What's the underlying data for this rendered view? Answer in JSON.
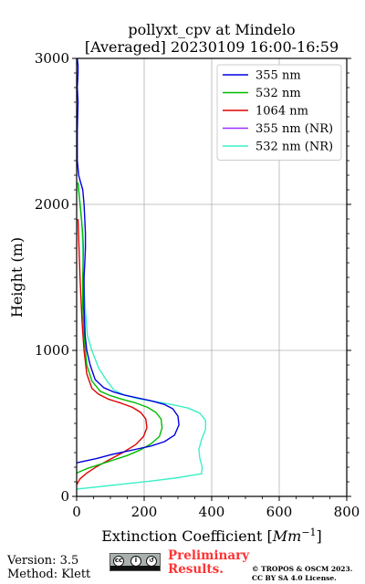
{
  "chart_data": {
    "type": "line",
    "title": "pollyxt_cpv at Mindelo",
    "subtitle": "[Averaged] 20230109 16:00-16:59",
    "xlabel": "Extinction Coefficient [Mm⁻¹]",
    "xlabel_main": "Extinction Coefficient [",
    "xlabel_unit": "Mm",
    "xlabel_exp": "−1",
    "xlabel_close": "]",
    "ylabel": "Height (m)",
    "xlim": [
      0,
      800
    ],
    "ylim": [
      0,
      3000
    ],
    "xticks": [
      "0",
      "200",
      "400",
      "600",
      "800"
    ],
    "yticks": [
      "0",
      "1000",
      "2000",
      "3000"
    ],
    "grid": true,
    "legend_position": "top-right",
    "series": [
      {
        "name": "355 nm",
        "color": "#0000dd",
        "x": [
          0,
          60,
          100,
          140,
          180,
          220,
          260,
          290,
          303,
          300,
          285,
          260,
          220,
          180,
          140,
          110,
          80,
          55,
          40,
          30,
          25,
          22,
          22,
          24,
          26,
          26,
          24,
          22,
          18,
          12,
          6,
          2,
          2,
          4,
          2,
          4,
          4,
          2
        ],
        "y": [
          230,
          260,
          285,
          305,
          325,
          345,
          375,
          420,
          490,
          550,
          600,
          630,
          655,
          675,
          695,
          715,
          745,
          800,
          900,
          1000,
          1100,
          1300,
          1500,
          1600,
          1700,
          1800,
          1900,
          2000,
          2100,
          2150,
          2200,
          2300,
          2500,
          2700,
          2800,
          2900,
          2950,
          3000
        ]
      },
      {
        "name": "532 nm",
        "color": "#00bb00",
        "x": [
          0,
          30,
          70,
          110,
          150,
          190,
          220,
          245,
          253,
          250,
          235,
          210,
          175,
          135,
          100,
          70,
          45,
          30,
          22,
          18,
          18,
          20,
          18,
          14,
          8,
          4
        ],
        "y": [
          160,
          190,
          220,
          250,
          280,
          320,
          360,
          410,
          470,
          530,
          575,
          610,
          640,
          665,
          690,
          720,
          790,
          900,
          1100,
          1300,
          1500,
          1700,
          1800,
          1900,
          2050,
          2150
        ]
      },
      {
        "name": "1064 nm",
        "color": "#dd0000",
        "x": [
          0,
          10,
          30,
          60,
          100,
          140,
          175,
          198,
          208,
          205,
          190,
          165,
          130,
          95,
          65,
          45,
          30,
          22,
          16,
          10,
          4
        ],
        "y": [
          80,
          120,
          160,
          205,
          255,
          305,
          355,
          410,
          470,
          530,
          575,
          610,
          640,
          665,
          700,
          740,
          840,
          1000,
          1200,
          1500,
          1900
        ]
      },
      {
        "name": "355 nm (NR)",
        "color": "#9b30ff",
        "x": [],
        "y": []
      },
      {
        "name": "532 nm (NR)",
        "color": "#3cf0c8",
        "x": [
          0,
          40,
          100,
          160,
          220,
          290,
          370,
          372,
          365,
          362,
          370,
          382,
          382,
          365,
          330,
          280,
          230,
          180,
          140,
          110,
          90,
          65,
          45,
          32,
          25,
          20,
          18,
          15,
          8,
          3
        ],
        "y": [
          50,
          60,
          75,
          90,
          105,
          125,
          155,
          200,
          260,
          320,
          390,
          460,
          520,
          570,
          605,
          630,
          650,
          670,
          695,
          730,
          790,
          880,
          1000,
          1100,
          1300,
          1500,
          1700,
          1900,
          2050,
          2150
        ]
      }
    ]
  },
  "footer": {
    "version": "Version: 3.5",
    "method": "Method: Klett",
    "preliminary_line1": "Preliminary",
    "preliminary_line2": "Results.",
    "copyright_line1": "© TROPOS & OSCM 2023.",
    "copyright_line2": "CC BY SA 4.0 License."
  },
  "license_badge": {
    "icon": "cc-by-sa-icon",
    "colors": {
      "background": "#aab0ae",
      "bar": "#111111"
    }
  }
}
